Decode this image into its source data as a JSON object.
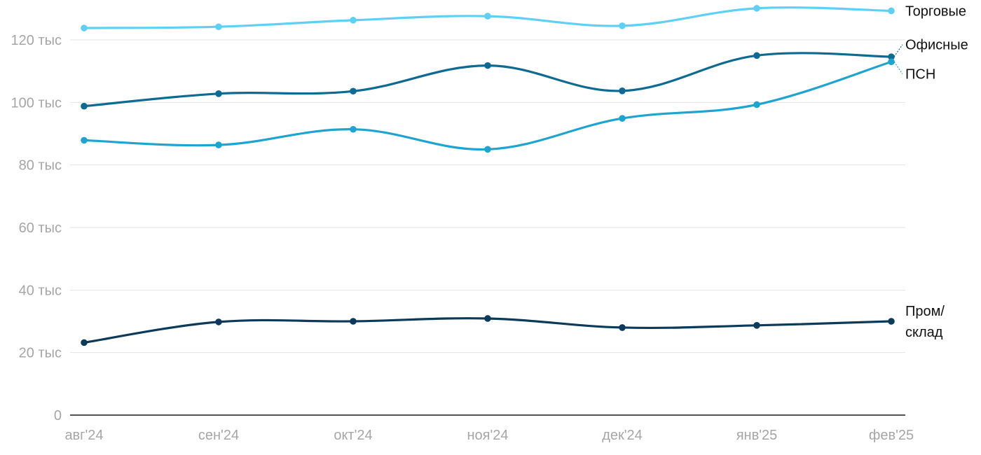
{
  "chart_data": {
    "type": "line",
    "categories": [
      "авг'24",
      "сен'24",
      "окт'24",
      "ноя'24",
      "дек'24",
      "янв'25",
      "фев'25"
    ],
    "yticks": [
      "0",
      "20 тыс",
      "40 тыс",
      "60 тыс",
      "80 тыс",
      "100 тыс",
      "120 тыс"
    ],
    "ylim": [
      0,
      120000
    ],
    "grid": true,
    "legend": "labels at line ends (right)",
    "series": [
      {
        "name": "Торговые",
        "label_lines": [
          "Торговые"
        ],
        "color": "#5fd0f5",
        "values": [
          123800,
          124200,
          126300,
          127600,
          124500,
          130100,
          129300
        ]
      },
      {
        "name": "Офисные",
        "label_lines": [
          "Офисные"
        ],
        "color": "#0d6a93",
        "values": [
          98800,
          102800,
          103600,
          111800,
          103700,
          115000,
          114600
        ]
      },
      {
        "name": "ПСН",
        "label_lines": [
          "ПСН"
        ],
        "color": "#1ea4d0",
        "values": [
          87900,
          86400,
          91400,
          85000,
          94900,
          99300,
          113000
        ]
      },
      {
        "name": "Пром/склад",
        "label_lines": [
          "Пром/",
          "склад"
        ],
        "color": "#0b3a5b",
        "values": [
          23200,
          29800,
          30000,
          30900,
          28000,
          28700,
          30000
        ]
      }
    ]
  }
}
